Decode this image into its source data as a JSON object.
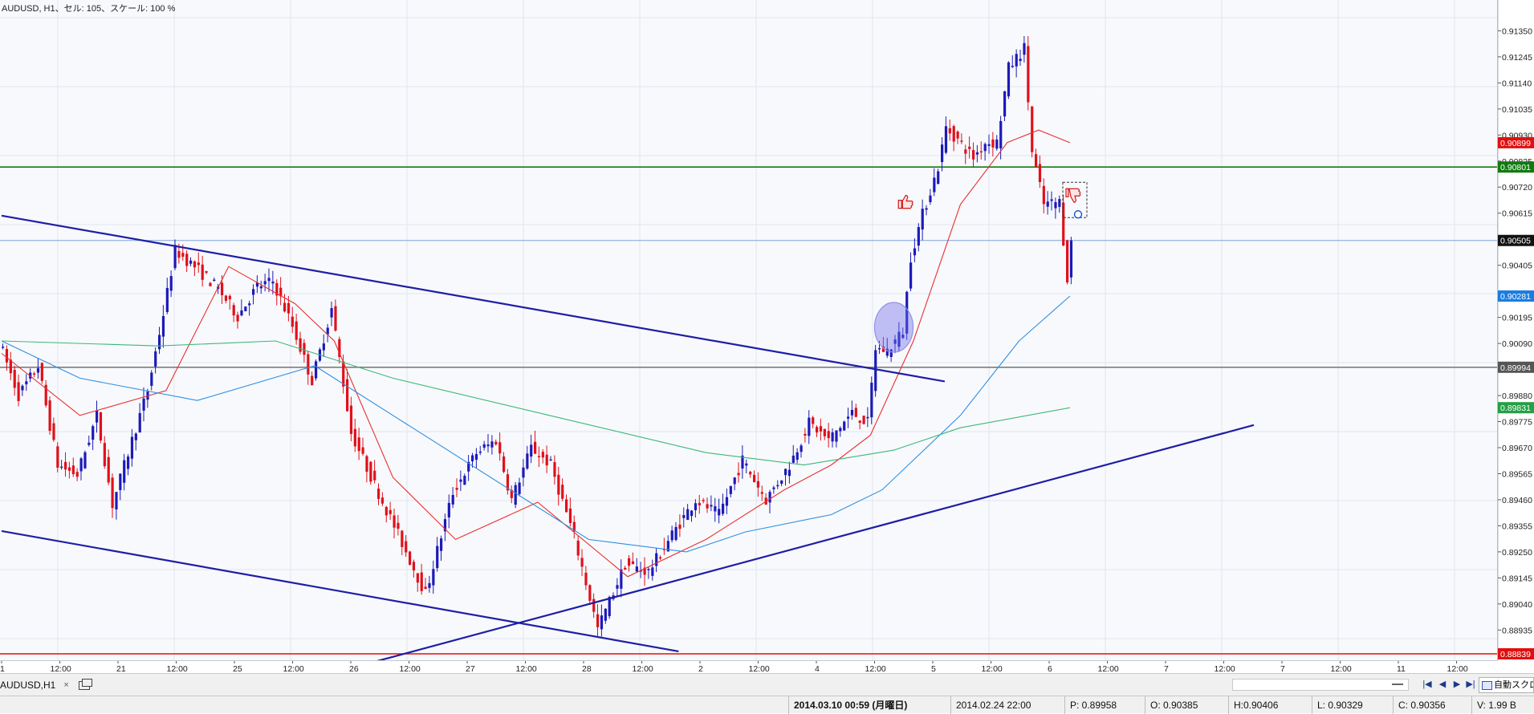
{
  "chart": {
    "title": "AUDUSD, H1、セル: 105、スケール: 100 %",
    "symbol": "AUDUSD",
    "timeframe": "H1"
  },
  "price_axis": {
    "ticks": [
      "0.91350",
      "0.91245",
      "0.91140",
      "0.91035",
      "0.90930",
      "0.90825",
      "0.90720",
      "0.90615",
      "0.90405",
      "0.90195",
      "0.90090",
      "0.89880",
      "0.89775",
      "0.89670",
      "0.89565",
      "0.89460",
      "0.89355",
      "0.89250",
      "0.89145",
      "0.89040",
      "0.88935"
    ],
    "range": [
      0.88839,
      0.91403
    ],
    "markers": [
      {
        "value": "0.90899",
        "price": 0.90899,
        "color": "#e01010",
        "text_color": "#ffffff"
      },
      {
        "value": "0.90801",
        "price": 0.90801,
        "color": "#127a12",
        "text_color": "#ffffff"
      },
      {
        "value": "0.90505",
        "price": 0.90505,
        "color": "#111111",
        "text_color": "#ffffff"
      },
      {
        "value": "0.90281",
        "price": 0.90281,
        "color": "#1a7de0",
        "text_color": "#ffffff"
      },
      {
        "value": "0.89994",
        "price": 0.89994,
        "color": "#555555",
        "text_color": "#ffffff"
      },
      {
        "value": "0.89831",
        "price": 0.89831,
        "color": "#25a045",
        "text_color": "#ffffff"
      },
      {
        "value": "0.88839",
        "price": 0.88839,
        "color": "#e01010",
        "text_color": "#ffffff"
      }
    ]
  },
  "time_axis": {
    "labels": [
      "1",
      "12:00",
      "21",
      "12:00",
      "25",
      "12:00",
      "26",
      "12:00",
      "27",
      "12:00",
      "28",
      "12:00",
      "2",
      "12:00",
      "4",
      "12:00",
      "5",
      "12:00",
      "6",
      "12:00",
      "7",
      "12:00",
      "7",
      "12:00",
      "11",
      "12:00"
    ]
  },
  "tabs": [
    {
      "label": "AUDUSD,H1",
      "close": "×"
    }
  ],
  "scroll": {
    "nav_first": "|◀",
    "nav_prev": "◀",
    "nav_next": "▶",
    "nav_last": "▶|",
    "autoscroll_label": "自動スクロール"
  },
  "status": {
    "datetime": "2014.03.10 00:59 (月曜日)",
    "bar_time": "2014.02.24 22:00",
    "p": "P: 0.89958",
    "o": "O: 0.90385",
    "h": "H:0.90406",
    "l": "L: 0.90329",
    "c": "C: 0.90356",
    "v": "V: 1.99 B"
  },
  "colors": {
    "bull_candle": "#1c1ab8",
    "bear_candle": "#e0101a",
    "trendline": "#1e1ea6",
    "ma_short": "#e83030",
    "ma_mid": "#2f8fe0",
    "ma_long": "#3cb878",
    "support_green": "#127a12",
    "support_red": "#e01010"
  },
  "chart_data": {
    "type": "candlestick",
    "instrument": "AUDUSD",
    "timeframe": "H1",
    "yrange": [
      0.88839,
      0.91403
    ],
    "horizontal_lines": [
      {
        "price": 0.90801,
        "color": "green"
      },
      {
        "price": 0.90505,
        "color": "blue"
      },
      {
        "price": 0.89994,
        "color": "gray"
      },
      {
        "price": 0.88839,
        "color": "red"
      }
    ],
    "trendlines": [
      {
        "from_bar": 0,
        "from_price": 0.90605,
        "to_bar": 241,
        "to_price": 0.89937
      },
      {
        "from_bar": 0,
        "from_price": 0.89334,
        "to_bar": 173,
        "to_price": 0.88849
      },
      {
        "from_bar": 96,
        "from_price": 0.8881,
        "to_bar": 320,
        "to_price": 0.89761
      }
    ],
    "path": [
      [
        0,
        0.901
      ],
      [
        5,
        0.8988
      ],
      [
        10,
        0.9
      ],
      [
        15,
        0.896
      ],
      [
        20,
        0.8956
      ],
      [
        25,
        0.898
      ],
      [
        29,
        0.8944
      ],
      [
        34,
        0.897
      ],
      [
        38,
        0.899
      ],
      [
        42,
        0.9021
      ],
      [
        45,
        0.90465
      ],
      [
        50,
        0.904
      ],
      [
        56,
        0.9031
      ],
      [
        61,
        0.902
      ],
      [
        66,
        0.9032
      ],
      [
        70,
        0.9034
      ],
      [
        75,
        0.9016
      ],
      [
        80,
        0.8994
      ],
      [
        85,
        0.9023
      ],
      [
        90,
        0.8973
      ],
      [
        96,
        0.8952
      ],
      [
        102,
        0.8932
      ],
      [
        109,
        0.8908
      ],
      [
        116,
        0.8949
      ],
      [
        122,
        0.8965
      ],
      [
        127,
        0.897
      ],
      [
        131,
        0.8946
      ],
      [
        136,
        0.8967
      ],
      [
        141,
        0.896
      ],
      [
        147,
        0.8931
      ],
      [
        153,
        0.8894
      ],
      [
        160,
        0.892
      ],
      [
        166,
        0.8917
      ],
      [
        172,
        0.8932
      ],
      [
        178,
        0.8946
      ],
      [
        184,
        0.894
      ],
      [
        190,
        0.8962
      ],
      [
        196,
        0.8946
      ],
      [
        202,
        0.896
      ],
      [
        207,
        0.8977
      ],
      [
        212,
        0.897
      ],
      [
        218,
        0.8981
      ],
      [
        222,
        0.8977
      ],
      [
        224,
        0.9007
      ],
      [
        227,
        0.9006
      ],
      [
        231,
        0.9014
      ],
      [
        233,
        0.9044
      ],
      [
        236,
        0.9061
      ],
      [
        240,
        0.908
      ],
      [
        242,
        0.9096
      ],
      [
        245,
        0.9091
      ],
      [
        249,
        0.9084
      ],
      [
        252,
        0.909
      ],
      [
        255,
        0.909
      ],
      [
        258,
        0.912
      ],
      [
        262,
        0.9128
      ],
      [
        264,
        0.9086
      ],
      [
        267,
        0.9065
      ],
      [
        271,
        0.9066
      ],
      [
        273,
        0.90356
      ]
    ],
    "moving_averages": [
      {
        "color": "red",
        "values": [
          [
            0,
            0.9005
          ],
          [
            20,
            0.898
          ],
          [
            42,
            0.899
          ],
          [
            58,
            0.904
          ],
          [
            75,
            0.9025
          ],
          [
            85,
            0.901
          ],
          [
            100,
            0.8955
          ],
          [
            116,
            0.893
          ],
          [
            137,
            0.8945
          ],
          [
            160,
            0.8915
          ],
          [
            180,
            0.893
          ],
          [
            200,
            0.895
          ],
          [
            212,
            0.896
          ],
          [
            222,
            0.8972
          ],
          [
            233,
            0.901
          ],
          [
            245,
            0.9065
          ],
          [
            257,
            0.909
          ],
          [
            265,
            0.9095
          ],
          [
            273,
            0.90899
          ]
        ]
      },
      {
        "color": "blue",
        "values": [
          [
            0,
            0.901
          ],
          [
            20,
            0.8995
          ],
          [
            50,
            0.8986
          ],
          [
            80,
            0.9
          ],
          [
            100,
            0.898
          ],
          [
            130,
            0.895
          ],
          [
            150,
            0.893
          ],
          [
            175,
            0.8925
          ],
          [
            190,
            0.8933
          ],
          [
            212,
            0.894
          ],
          [
            225,
            0.895
          ],
          [
            245,
            0.898
          ],
          [
            260,
            0.901
          ],
          [
            273,
            0.90281
          ]
        ]
      },
      {
        "color": "green",
        "values": [
          [
            0,
            0.901
          ],
          [
            40,
            0.9008
          ],
          [
            70,
            0.901
          ],
          [
            100,
            0.8995
          ],
          [
            140,
            0.898
          ],
          [
            180,
            0.8965
          ],
          [
            205,
            0.896
          ],
          [
            228,
            0.8966
          ],
          [
            245,
            0.8975
          ],
          [
            273,
            0.89831
          ]
        ]
      }
    ]
  }
}
